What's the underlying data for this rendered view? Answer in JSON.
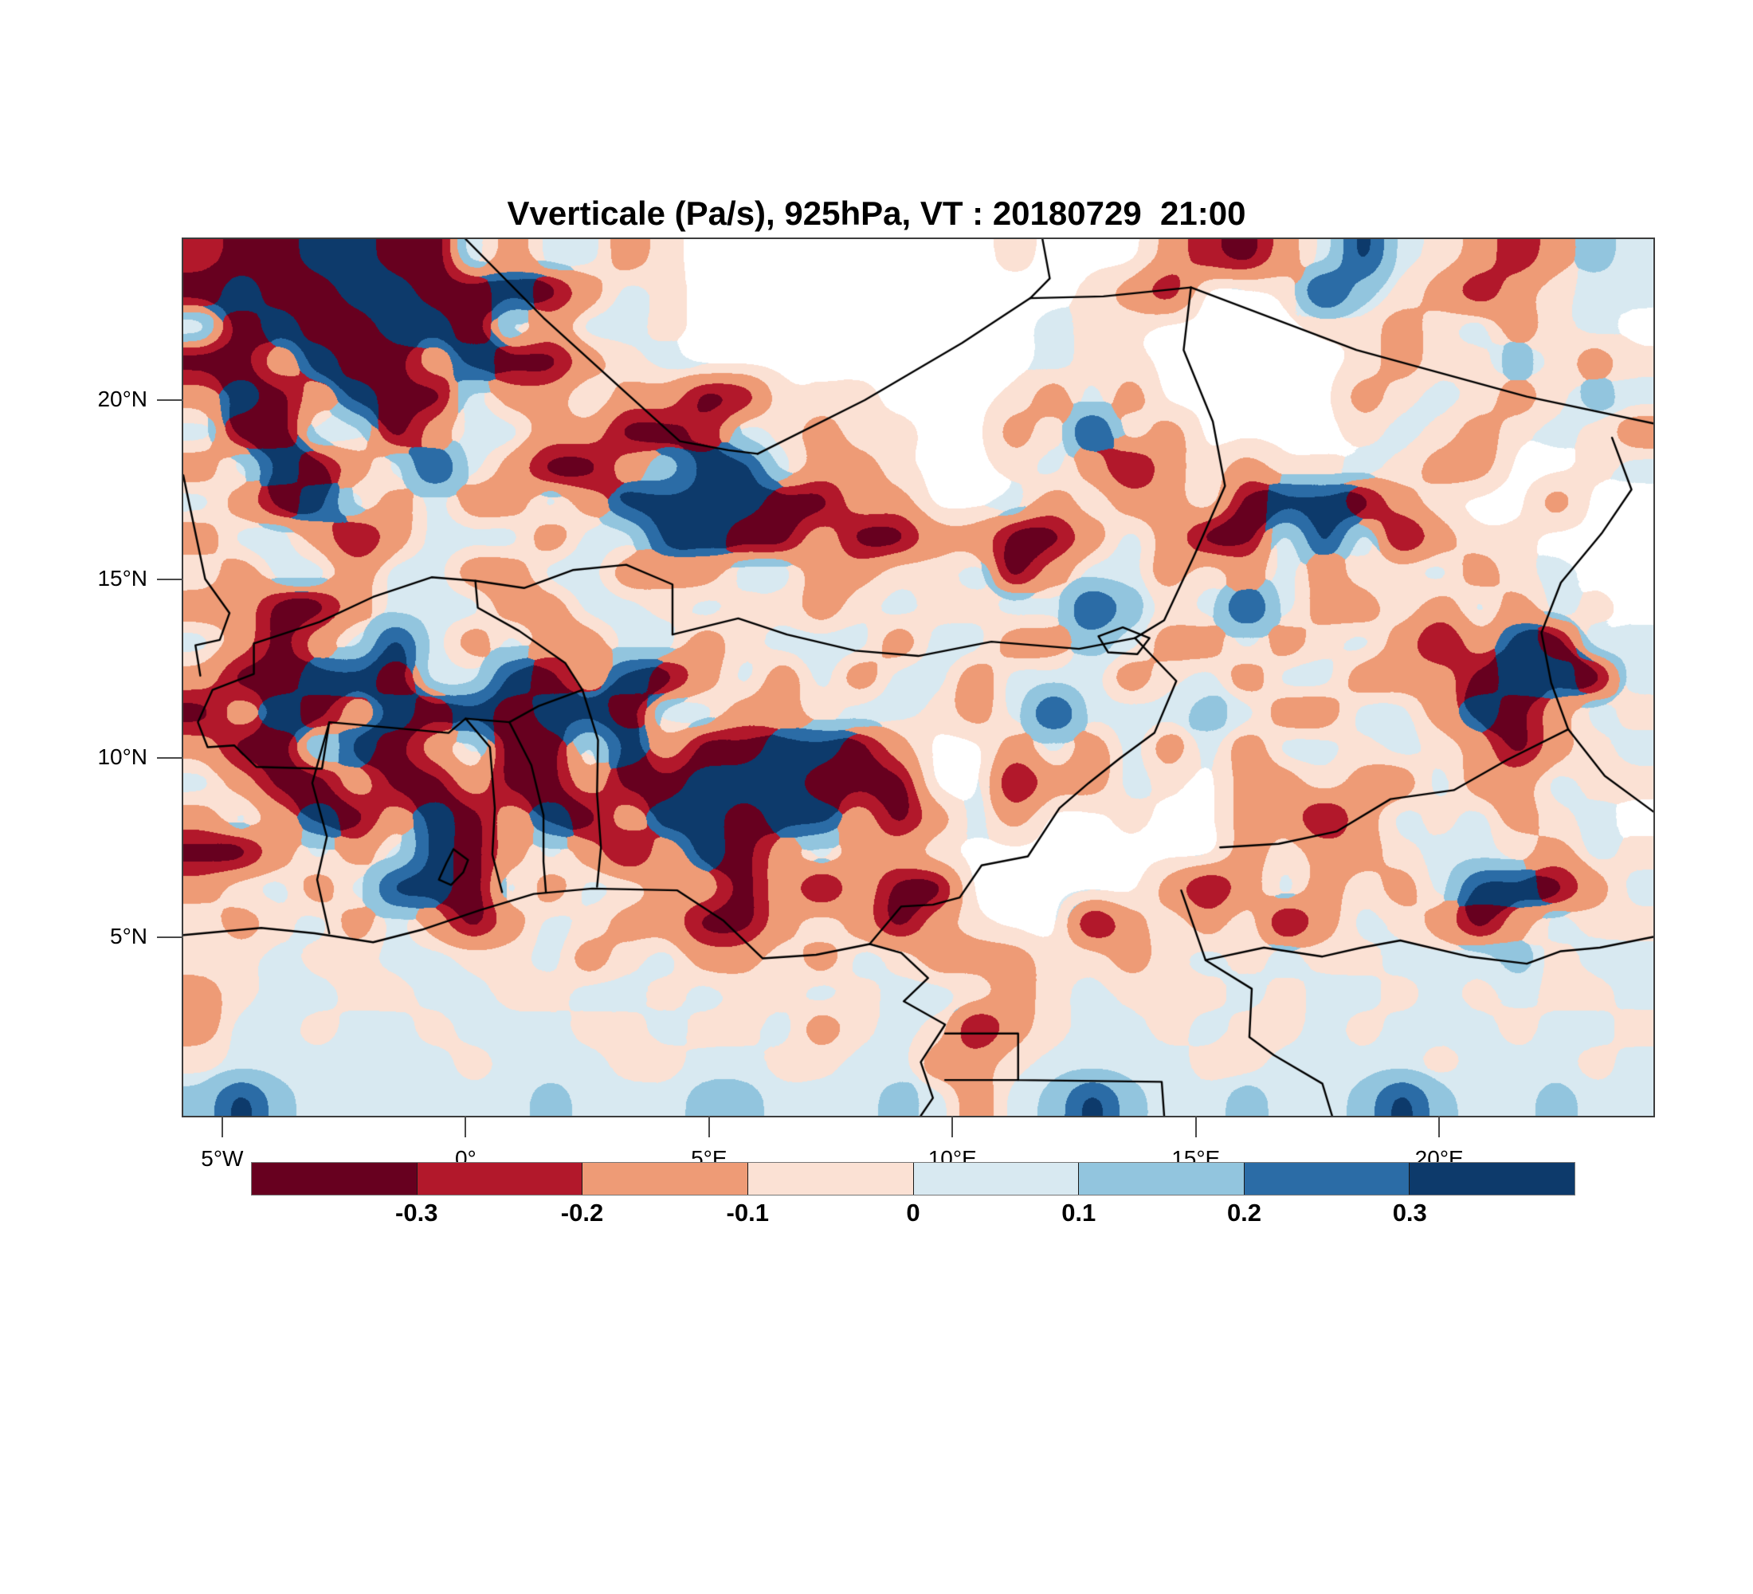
{
  "figure": {
    "title": "Vverticale (Pa/s), 925hPa, VT : 20180729  21:00"
  },
  "axes": {
    "lat_ticks": [
      {
        "value": 20,
        "label": "20°N"
      },
      {
        "value": 15,
        "label": "15°N"
      },
      {
        "value": 10,
        "label": "10°N"
      },
      {
        "value": 5,
        "label": "5°N"
      }
    ],
    "lon_ticks": [
      {
        "value": -5,
        "label": "5°W"
      },
      {
        "value": 0,
        "label": "0°"
      },
      {
        "value": 5,
        "label": "5°E"
      },
      {
        "value": 10,
        "label": "10°E"
      },
      {
        "value": 15,
        "label": "15°E"
      },
      {
        "value": 20,
        "label": "20°E"
      }
    ]
  },
  "colorbar": {
    "levels": [
      "-0.3",
      "-0.2",
      "-0.1",
      "0",
      "0.1",
      "0.2",
      "0.3"
    ],
    "colors": [
      "#67001f",
      "#b2182b",
      "#ee9b76",
      "#fbe1d4",
      "#d8e9f1",
      "#92c5de",
      "#2b6ca6",
      "#0d3a6b"
    ]
  },
  "chart_data": {
    "type": "heatmap",
    "title": "Vverticale (Pa/s), 925hPa, VT : 20180729  21:00",
    "variable": "Vverticale",
    "units": "Pa/s",
    "pressure_level": "925hPa",
    "valid_time": "20180729 21:00",
    "lon_range": [
      -5.8,
      24.4
    ],
    "lat_range": [
      0.0,
      24.5
    ],
    "class_bounds": [
      -0.3,
      -0.2,
      -0.1,
      0,
      0.1,
      0.2,
      0.3
    ],
    "palette_colors": [
      "#67001f",
      "#b2182b",
      "#ee9b76",
      "#fbe1d4",
      "#d8e9f1",
      "#92c5de",
      "#2b6ca6",
      "#0d3a6b"
    ],
    "missing_color": "#ffffff",
    "grid": {
      "note": "Coarse 38x25 field of colour-class indices 0-7 (0 = omega < -0.3 Pa/s ... 7 = omega > 0.3 Pa/s), '.' = missing/white. Row 0 = north (lat 24.5N), row 24 = south (lat 0N); col 0 = west (5.8W), col 37 = east (24.4E).",
      "cols": 38,
      "rows": [
        "1007700424423........3...2102474321254",
        "0700770070243..........321..3753212344",
        "4070077042443.........433....33234234.",
        "0027002700234.........433.....32335323",
        "270270042242201333...3242.....23432354",
        "4004402442200143233..23732....34323432",
        "2470247420025774223..3420232334322..34",
        "4207424224277770022..423223077023..2..",
        "24420244424477002002200242004740233...",
        "324424422442224422334024423242334234..",
        "2200244422443433234334475347422324243.",
        "42024742422442344424422542242342027044",
        "20077044702702424244244423424422207704",
        "02702707077044223443247444542244270243",
        "2004702400472007702..24242424434320234",
        "4200200200200777000..02243.22322422433",
        "2427027027027707720242..3..2202434234.",
        "00242470242027024223.......23223443243",
        "23424770424322020200.....2024232477024",
        "323424202432200232023..023230243202433",
        "33433443342342232432223323434334445344",
        "23443344334434334344323433343443434334",
        "24434434443343342343023443433434443443",
        "34444443444334433442234444334444344434",
        "57544444454445544454245754454457544544"
      ]
    },
    "borders": [
      [
        [
          0.0,
          24.5
        ],
        [
          1.6,
          22.3
        ],
        [
          3.3,
          20.2
        ],
        [
          4.4,
          18.85
        ],
        [
          5.4,
          18.6
        ],
        [
          6.0,
          18.5
        ]
      ],
      [
        [
          6.0,
          18.5
        ],
        [
          8.2,
          20.0
        ],
        [
          10.2,
          21.6
        ],
        [
          11.6,
          22.85
        ]
      ],
      [
        [
          11.6,
          22.85
        ],
        [
          12.0,
          23.4
        ],
        [
          11.85,
          24.5
        ]
      ],
      [
        [
          11.6,
          22.85
        ],
        [
          13.1,
          22.9
        ],
        [
          14.9,
          23.15
        ]
      ],
      [
        [
          14.9,
          23.15
        ],
        [
          18.3,
          21.4
        ],
        [
          21.8,
          20.1
        ],
        [
          24.4,
          19.35
        ]
      ],
      [
        [
          14.9,
          23.15
        ],
        [
          14.75,
          21.4
        ],
        [
          15.35,
          19.4
        ],
        [
          15.6,
          17.6
        ],
        [
          14.95,
          15.6
        ],
        [
          14.35,
          13.85
        ],
        [
          13.75,
          13.35
        ]
      ],
      [
        [
          23.55,
          18.95
        ],
        [
          23.95,
          17.5
        ],
        [
          23.35,
          16.3
        ],
        [
          22.5,
          14.9
        ],
        [
          22.1,
          13.5
        ],
        [
          22.3,
          12.1
        ],
        [
          22.65,
          10.8
        ],
        [
          23.4,
          9.5
        ],
        [
          24.4,
          8.5
        ]
      ],
      [
        [
          4.25,
          13.45
        ],
        [
          5.6,
          13.9
        ],
        [
          6.6,
          13.45
        ],
        [
          8.0,
          13.0
        ],
        [
          9.3,
          12.85
        ],
        [
          10.8,
          13.25
        ],
        [
          12.6,
          13.05
        ],
        [
          13.75,
          13.35
        ]
      ],
      [
        [
          -4.35,
          13.2
        ],
        [
          -3.0,
          13.8
        ],
        [
          -1.9,
          14.5
        ],
        [
          -0.7,
          15.05
        ],
        [
          0.2,
          14.95
        ],
        [
          0.25,
          14.2
        ],
        [
          1.1,
          13.55
        ],
        [
          2.05,
          12.65
        ],
        [
          2.4,
          11.9
        ],
        [
          1.5,
          11.45
        ],
        [
          0.9,
          11.0
        ],
        [
          0.0,
          11.1
        ],
        [
          -0.35,
          10.7
        ],
        [
          -2.8,
          11.0
        ],
        [
          -2.95,
          9.7
        ],
        [
          -4.3,
          9.75
        ],
        [
          -4.75,
          10.35
        ],
        [
          -5.3,
          10.3
        ],
        [
          -5.5,
          11.0
        ],
        [
          -5.2,
          11.9
        ],
        [
          -4.35,
          12.35
        ],
        [
          -4.35,
          13.2
        ]
      ],
      [
        [
          0.2,
          14.95
        ],
        [
          1.2,
          14.75
        ],
        [
          2.2,
          15.25
        ],
        [
          3.3,
          15.4
        ],
        [
          4.25,
          14.85
        ],
        [
          4.25,
          13.45
        ]
      ],
      [
        [
          0.0,
          11.1
        ],
        [
          0.5,
          10.3
        ],
        [
          0.6,
          8.6
        ],
        [
          0.55,
          7.3
        ],
        [
          0.75,
          6.25
        ]
      ],
      [
        [
          0.9,
          11.0
        ],
        [
          1.35,
          9.8
        ],
        [
          1.6,
          8.4
        ],
        [
          1.6,
          7.1
        ],
        [
          1.65,
          6.25
        ]
      ],
      [
        [
          2.4,
          11.9
        ],
        [
          2.72,
          10.5
        ],
        [
          2.7,
          9.0
        ],
        [
          2.78,
          7.5
        ],
        [
          2.7,
          6.4
        ]
      ],
      [
        [
          -2.8,
          11.0
        ],
        [
          -3.15,
          9.3
        ],
        [
          -2.85,
          7.8
        ],
        [
          -3.05,
          6.6
        ],
        [
          -2.8,
          5.1
        ]
      ],
      [
        [
          -5.8,
          5.05
        ],
        [
          -4.2,
          5.25
        ],
        [
          -3.1,
          5.1
        ],
        [
          -1.9,
          4.85
        ],
        [
          -0.9,
          5.2
        ],
        [
          0.3,
          5.75
        ],
        [
          1.4,
          6.2
        ],
        [
          2.6,
          6.35
        ],
        [
          4.35,
          6.3
        ],
        [
          5.3,
          5.45
        ],
        [
          6.1,
          4.4
        ],
        [
          7.2,
          4.5
        ],
        [
          8.3,
          4.8
        ],
        [
          8.95,
          4.55
        ],
        [
          9.5,
          3.85
        ],
        [
          9.0,
          3.2
        ],
        [
          9.85,
          2.55
        ],
        [
          9.35,
          1.5
        ],
        [
          9.6,
          0.5
        ],
        [
          9.35,
          0.0
        ]
      ],
      [
        [
          13.75,
          13.35
        ],
        [
          14.6,
          12.15
        ],
        [
          14.15,
          10.7
        ],
        [
          13.45,
          10.0
        ],
        [
          12.8,
          9.3
        ],
        [
          12.2,
          8.6
        ],
        [
          11.55,
          7.25
        ],
        [
          10.6,
          7.0
        ],
        [
          10.15,
          6.1
        ],
        [
          9.6,
          5.9
        ],
        [
          8.95,
          5.85
        ],
        [
          8.3,
          4.8
        ]
      ],
      [
        [
          15.5,
          7.5
        ],
        [
          16.7,
          7.6
        ],
        [
          17.9,
          7.95
        ],
        [
          19.0,
          8.85
        ],
        [
          20.3,
          9.1
        ],
        [
          21.4,
          9.95
        ],
        [
          22.65,
          10.8
        ]
      ],
      [
        [
          14.7,
          6.3
        ],
        [
          15.2,
          4.35
        ],
        [
          16.15,
          3.55
        ],
        [
          16.1,
          2.2
        ],
        [
          16.6,
          1.7
        ],
        [
          17.6,
          0.9
        ],
        [
          17.8,
          0.0
        ]
      ],
      [
        [
          15.2,
          4.35
        ],
        [
          16.4,
          4.7
        ],
        [
          17.6,
          4.45
        ],
        [
          18.4,
          4.7
        ],
        [
          19.2,
          4.9
        ],
        [
          20.6,
          4.45
        ],
        [
          21.8,
          4.25
        ],
        [
          22.5,
          4.6
        ],
        [
          23.3,
          4.7
        ],
        [
          24.4,
          5.0
        ]
      ],
      [
        [
          9.85,
          2.3
        ],
        [
          11.35,
          2.3
        ],
        [
          11.35,
          1.0
        ],
        [
          14.3,
          0.95
        ],
        [
          14.35,
          0.0
        ]
      ],
      [
        [
          9.85,
          1.0
        ],
        [
          11.35,
          1.0
        ]
      ],
      [
        [
          -5.8,
          17.9
        ],
        [
          -5.35,
          15.0
        ],
        [
          -4.85,
          14.05
        ],
        [
          -5.05,
          13.3
        ],
        [
          -5.55,
          13.15
        ],
        [
          -5.45,
          12.3
        ]
      ],
      [
        [
          -0.25,
          7.45
        ],
        [
          0.05,
          7.15
        ],
        [
          -0.05,
          6.8
        ],
        [
          -0.3,
          6.45
        ],
        [
          -0.55,
          6.6
        ],
        [
          -0.4,
          7.05
        ],
        [
          -0.25,
          7.45
        ]
      ],
      [
        [
          13.0,
          13.4
        ],
        [
          13.5,
          13.65
        ],
        [
          14.05,
          13.35
        ],
        [
          13.8,
          12.9
        ],
        [
          13.2,
          12.95
        ],
        [
          13.0,
          13.4
        ]
      ]
    ]
  }
}
